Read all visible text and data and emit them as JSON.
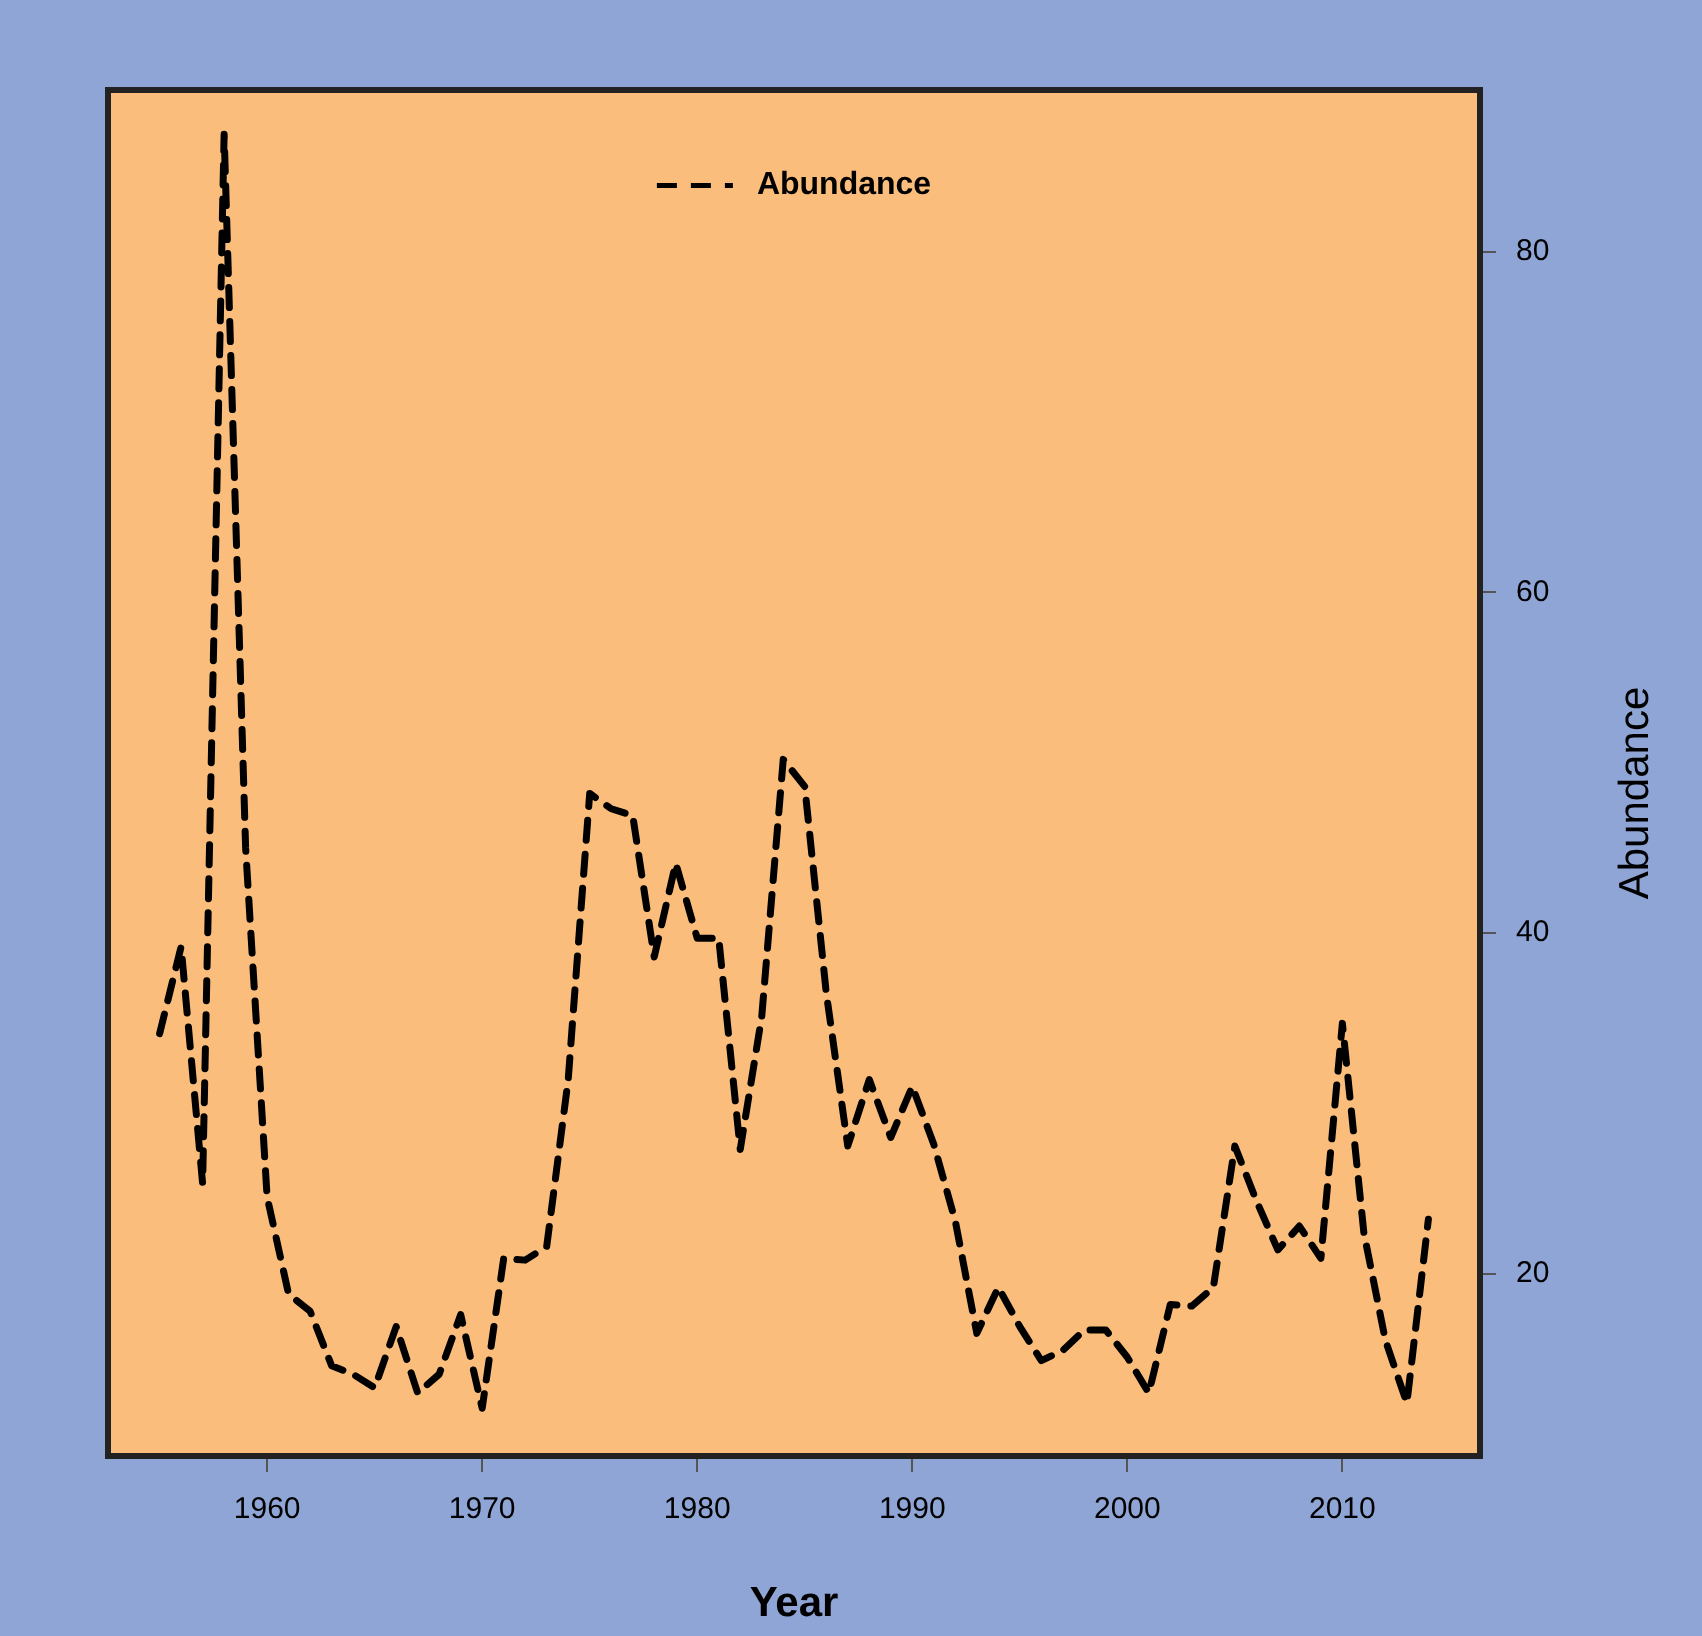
{
  "chart_data": {
    "type": "line",
    "xlabel": "Year",
    "ylabel": "Abundance",
    "x": [
      1955,
      1956,
      1957,
      1958,
      1959,
      1960,
      1961,
      1962,
      1963,
      1964,
      1965,
      1966,
      1967,
      1968,
      1969,
      1970,
      1971,
      1972,
      1973,
      1974,
      1975,
      1976,
      1977,
      1978,
      1979,
      1980,
      1981,
      1982,
      1983,
      1984,
      1985,
      1986,
      1987,
      1988,
      1989,
      1990,
      1991,
      1992,
      1993,
      1994,
      1995,
      1996,
      1997,
      1998,
      1999,
      2000,
      2001,
      2002,
      2003,
      2004,
      2005,
      2006,
      2007,
      2008,
      2009,
      2010,
      2011,
      2012,
      2013,
      2014
    ],
    "series": [
      {
        "name": "Abundance",
        "color": "#000000",
        "values": [
          34.1,
          39.2,
          25.3,
          86.9,
          45,
          24.5,
          18.8,
          17.8,
          14.6,
          14.1,
          13.3,
          16.9,
          13.0,
          14.1,
          17.6,
          12.1,
          20.9,
          20.8,
          21.6,
          31.4,
          48.2,
          47.3,
          46.9,
          38.6,
          44.1,
          39.7,
          39.7,
          27.3,
          35.1,
          50.2,
          48.6,
          36.5,
          27.5,
          31.4,
          28.0,
          31.0,
          27.6,
          23.1,
          16.5,
          19.2,
          16.9,
          14.9,
          15.5,
          16.7,
          16.7,
          15.1,
          13.0,
          18.2,
          18.1,
          19.2,
          27.5,
          24.3,
          21.4,
          22.8,
          20.9,
          34.7,
          22.4,
          16.1,
          12.4,
          23.2
        ]
      }
    ],
    "xlim": [
      1952.6,
      2016.4
    ],
    "xticks": [
      1960,
      1970,
      1980,
      1990,
      2000,
      2010
    ],
    "ylim": [
      9.3,
      89.5
    ],
    "yticks": [
      20,
      40,
      60,
      80
    ],
    "grid": false,
    "legend": "top",
    "marker": "none",
    "line_style": "dashed"
  }
}
